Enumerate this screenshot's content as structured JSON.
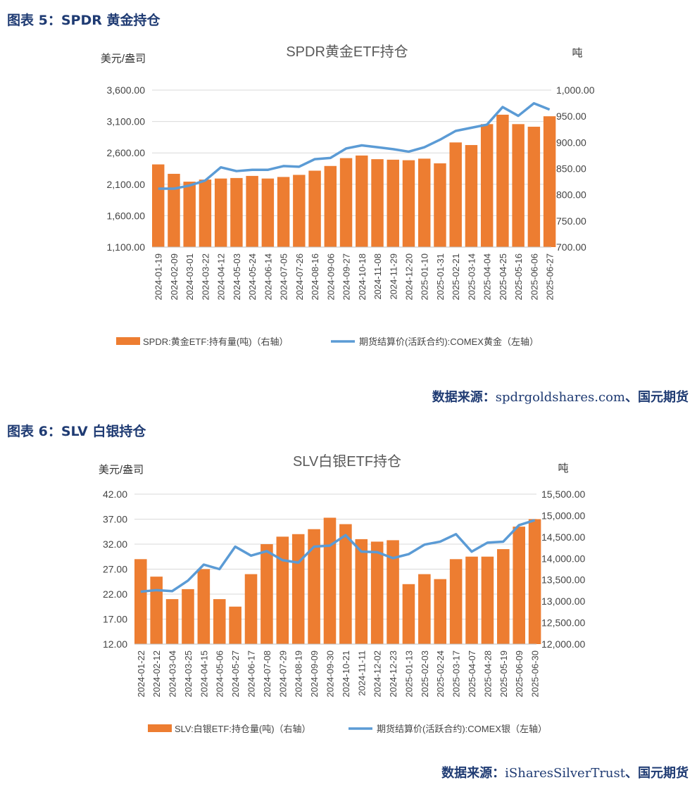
{
  "figures": [
    {
      "heading": "图表 5：SPDR 黄金持仓",
      "source_label": "数据来源：",
      "source_text": "spdrgoldshares.com",
      "source_suffix": "、国元期货"
    },
    {
      "heading": "图表 6：SLV 白银持仓",
      "source_label": "数据来源：",
      "source_text": "iSharesSilverTrust",
      "source_suffix": "、国元期货"
    }
  ],
  "colors": {
    "bar": "#ed7d31",
    "line": "#5b9bd5",
    "heading": "#1f3b73",
    "grid": "#d9d9d9"
  },
  "chart_data": [
    {
      "type": "bar+line",
      "title": "SPDR黄金ETF持仓",
      "ylabel_left": "美元/盎司",
      "ylabel_right": "吨",
      "ylim_left": [
        1100,
        3600
      ],
      "yticks_left": [
        "1,100.00",
        "1,600.00",
        "2,100.00",
        "2,600.00",
        "3,100.00",
        "3,600.00"
      ],
      "ylim_right": [
        700,
        1000
      ],
      "yticks_right": [
        "700.00",
        "750.00",
        "800.00",
        "850.00",
        "900.00",
        "950.00",
        "1,000.00"
      ],
      "grid": true,
      "legend": "bottom",
      "categories": [
        "2024-01-19",
        "2024-02-09",
        "2024-03-01",
        "2024-03-22",
        "2024-04-12",
        "2024-05-03",
        "2024-05-24",
        "2024-06-14",
        "2024-07-05",
        "2024-07-26",
        "2024-08-16",
        "2024-09-06",
        "2024-09-27",
        "2024-10-18",
        "2024-11-08",
        "2024-11-29",
        "2024-12-20",
        "2025-01-10",
        "2025-01-31",
        "2025-02-21",
        "2025-03-14",
        "2025-04-04",
        "2025-04-25",
        "2025-05-16",
        "2025-06-06",
        "2025-06-27"
      ],
      "series": [
        {
          "name": "SPDR:黄金ETF:持有量(吨)（右轴）",
          "type": "bar",
          "axis": "right",
          "values": [
            858,
            840,
            825,
            829,
            831,
            832,
            836,
            831,
            834,
            838,
            846,
            855,
            870,
            875,
            868,
            867,
            866,
            869,
            860,
            900,
            895,
            935,
            953,
            935,
            930,
            950
          ]
        },
        {
          "name": "期货结算价(活跃合约):COMEX黄金（左轴）",
          "type": "line",
          "axis": "left",
          "values": [
            2030,
            2030,
            2080,
            2160,
            2370,
            2310,
            2330,
            2330,
            2390,
            2380,
            2500,
            2520,
            2670,
            2720,
            2690,
            2660,
            2620,
            2690,
            2810,
            2950,
            3000,
            3050,
            3330,
            3190,
            3390,
            3290
          ]
        }
      ]
    },
    {
      "type": "bar+line",
      "title": "SLV白银ETF持仓",
      "ylabel_left": "美元/盎司",
      "ylabel_right": "吨",
      "ylim_left": [
        12,
        42
      ],
      "yticks_left": [
        "12.00",
        "17.00",
        "22.00",
        "27.00",
        "32.00",
        "37.00",
        "42.00"
      ],
      "ylim_right": [
        12000,
        15500
      ],
      "yticks_right": [
        "12,000.00",
        "12,500.00",
        "13,000.00",
        "13,500.00",
        "14,000.00",
        "14,500.00",
        "15,000.00",
        "15,500.00"
      ],
      "grid": true,
      "legend": "bottom",
      "categories": [
        "2024-01-22",
        "2024-02-12",
        "2024-03-04",
        "2024-03-25",
        "2024-04-15",
        "2024-05-06",
        "2024-05-27",
        "2024-06-17",
        "2024-07-08",
        "2024-07-29",
        "2024-08-19",
        "2024-09-09",
        "2024-09-30",
        "2024-10-21",
        "2024-11-11",
        "2024-12-02",
        "2024-12-23",
        "2025-01-13",
        "2025-02-03",
        "2025-02-24",
        "2025-03-17",
        "2025-04-07",
        "2025-04-28",
        "2025-05-19",
        "2025-06-09",
        "2025-06-30"
      ],
      "series": [
        {
          "name": "SLV:白银ETF:持仓量(吨)（右轴）",
          "type": "bar",
          "axis": "right",
          "values": [
            13983,
            13575,
            13050,
            13283,
            13750,
            13050,
            12875,
            13633,
            14333,
            14508,
            14567,
            14683,
            14950,
            14800,
            14450,
            14392,
            14425,
            13400,
            13633,
            13517,
            13983,
            14042,
            14042,
            14217,
            14742,
            14917
          ]
        },
        {
          "name": "期货结算价(活跃合约):COMEX银（左轴）",
          "type": "line",
          "axis": "left",
          "values": [
            22.5,
            22.8,
            22.6,
            24.7,
            27.9,
            27.0,
            31.5,
            29.7,
            30.6,
            28.8,
            28.3,
            31.5,
            31.7,
            33.8,
            30.5,
            30.4,
            29.2,
            30.0,
            31.9,
            32.5,
            34.0,
            30.5,
            32.3,
            32.5,
            35.8,
            36.8
          ]
        }
      ]
    }
  ]
}
